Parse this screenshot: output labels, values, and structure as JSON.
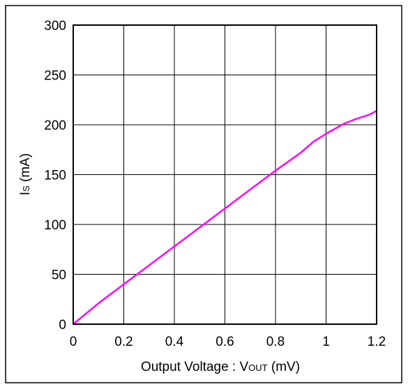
{
  "chart_data": {
    "type": "line",
    "title": "",
    "xlabel_main": "Output Voltage : V",
    "xlabel_sub": "OUT",
    "xlabel_unit": " (mV)",
    "ylabel_main": "I",
    "ylabel_sub": "S",
    "ylabel_unit": " (mA)",
    "xlim": [
      0,
      1.2
    ],
    "ylim": [
      0,
      300
    ],
    "xticks": [
      0,
      0.2,
      0.4,
      0.6,
      0.8,
      1.0,
      1.2
    ],
    "xtick_labels": [
      "0",
      "0.2",
      "0.4",
      "0.6",
      "0.8",
      "1",
      "1.2"
    ],
    "yticks": [
      0,
      50,
      100,
      150,
      200,
      250,
      300
    ],
    "ytick_labels": [
      "0",
      "50",
      "100",
      "150",
      "200",
      "250",
      "300"
    ],
    "grid": true,
    "legend": "none",
    "series": [
      {
        "color": "#ff00ff",
        "x": [
          0,
          0.1,
          0.2,
          0.3,
          0.4,
          0.5,
          0.6,
          0.7,
          0.8,
          0.9,
          0.95,
          1.0,
          1.07,
          1.12,
          1.17,
          1.2
        ],
        "y": [
          0,
          21,
          40,
          59,
          78,
          97,
          116,
          135,
          154,
          172,
          183,
          191,
          201,
          206,
          210,
          214
        ]
      }
    ],
    "colors": {
      "axis": "#000000",
      "grid": "#000000",
      "frame": "#000000"
    }
  }
}
